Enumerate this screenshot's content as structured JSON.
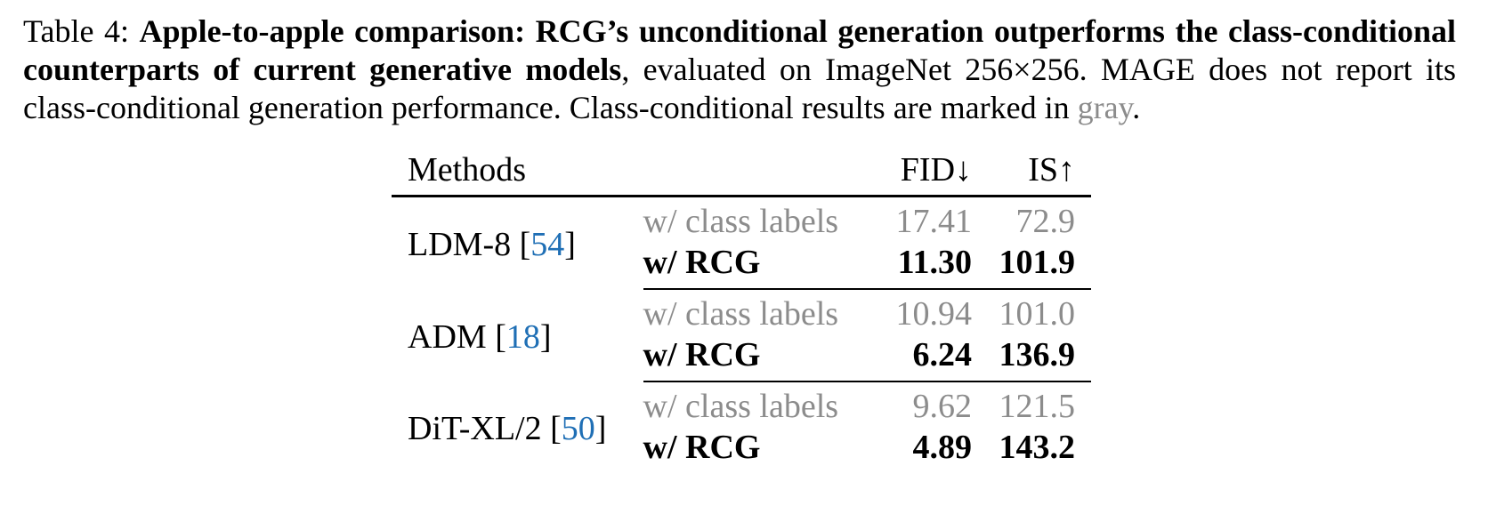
{
  "caption": {
    "label": "Table 4:",
    "bold_text": "Apple-to-apple comparison: RCG’s unconditional generation outperforms the class-conditional counterparts of current generative models",
    "rest_text": ", evaluated on ImageNet 256×256. MAGE does not report its class-conditional generation performance. Class-conditional results are marked in ",
    "gray_word": "gray",
    "end": "."
  },
  "table": {
    "headers": {
      "methods": "Methods",
      "variant": "",
      "fid": "FID↓",
      "is": "IS↑"
    },
    "groups": [
      {
        "method": "LDM-8",
        "cite": "54",
        "rows": [
          {
            "variant": "w/ class labels",
            "fid": "17.41",
            "is": "72.9",
            "style": "gray"
          },
          {
            "variant": "w/ RCG",
            "fid": "11.30",
            "is": "101.9",
            "style": "bold"
          }
        ]
      },
      {
        "method": "ADM",
        "cite": "18",
        "rows": [
          {
            "variant": "w/ class labels",
            "fid": "10.94",
            "is": "101.0",
            "style": "gray"
          },
          {
            "variant": "w/ RCG",
            "fid": "6.24",
            "is": "136.9",
            "style": "bold"
          }
        ]
      },
      {
        "method": "DiT-XL/2",
        "cite": "50",
        "rows": [
          {
            "variant": "w/ class labels",
            "fid": "9.62",
            "is": "121.5",
            "style": "gray"
          },
          {
            "variant": "w/ RCG",
            "fid": "4.89",
            "is": "143.2",
            "style": "bold"
          }
        ]
      }
    ]
  },
  "colors": {
    "gray_text": "#8c8c8c",
    "citation": "#1f6fb5"
  }
}
